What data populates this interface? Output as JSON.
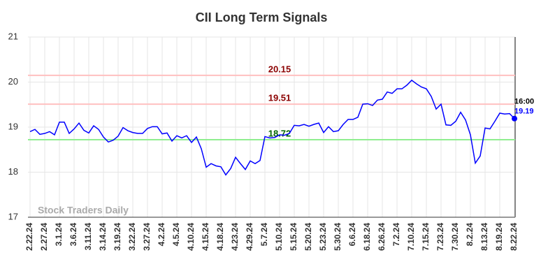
{
  "chart_data": {
    "type": "line",
    "title": "CII Long Term Signals",
    "watermark": "Stock Traders Daily",
    "categories": [
      "2.22.24",
      null,
      null,
      "2.27.24",
      null,
      null,
      "3.1.24",
      null,
      null,
      "3.6.24",
      null,
      null,
      "3.11.24",
      null,
      null,
      "3.14.24",
      null,
      null,
      "3.19.24",
      null,
      null,
      "3.22.24",
      null,
      null,
      "3.27.24",
      null,
      null,
      "4.2.24",
      null,
      null,
      "4.5.24",
      null,
      null,
      "4.10.24",
      null,
      null,
      "4.15.24",
      null,
      null,
      "4.18.24",
      null,
      null,
      "4.23.24",
      null,
      null,
      "4.29.24",
      null,
      null,
      "5.7.24",
      null,
      null,
      "5.10.24",
      null,
      null,
      "5.15.24",
      null,
      null,
      "5.20.24",
      null,
      null,
      "5.23.24",
      null,
      null,
      "5.30.24",
      null,
      null,
      "6.6.24",
      null,
      null,
      "6.18.24",
      null,
      null,
      "6.26.24",
      null,
      null,
      "7.2.24",
      null,
      null,
      "7.10.24",
      null,
      null,
      "7.15.24",
      null,
      null,
      "7.23.24",
      null,
      null,
      "7.30.24",
      null,
      null,
      "8.2.24",
      null,
      null,
      "8.13.24",
      null,
      null,
      "8.19.24",
      null,
      null,
      "8.22.24"
    ],
    "values": [
      18.9,
      18.95,
      18.84,
      18.86,
      18.9,
      18.83,
      19.11,
      19.11,
      18.86,
      18.96,
      19.09,
      18.93,
      18.87,
      19.03,
      18.95,
      18.78,
      18.67,
      18.71,
      18.8,
      18.99,
      18.92,
      18.88,
      18.86,
      18.86,
      18.97,
      19.01,
      19.01,
      18.85,
      18.87,
      18.69,
      18.81,
      18.76,
      18.81,
      18.66,
      18.78,
      18.52,
      18.11,
      18.19,
      18.14,
      18.12,
      17.94,
      18.08,
      18.33,
      18.19,
      18.06,
      18.25,
      18.19,
      18.26,
      18.79,
      18.76,
      18.77,
      18.83,
      18.82,
      18.86,
      19.04,
      19.03,
      19.06,
      19.02,
      19.06,
      19.09,
      18.88,
      19.01,
      18.9,
      18.92,
      19.06,
      19.17,
      19.17,
      19.22,
      19.51,
      19.52,
      19.48,
      19.6,
      19.62,
      19.78,
      19.75,
      19.85,
      19.85,
      19.93,
      20.04,
      19.96,
      19.89,
      19.85,
      19.68,
      19.4,
      19.51,
      19.05,
      19.04,
      19.13,
      19.33,
      19.16,
      18.83,
      18.2,
      18.36,
      18.98,
      18.96,
      19.13,
      19.31,
      19.29,
      19.3,
      19.19
    ],
    "color": "#0000ff",
    "hlines": [
      {
        "value": 20.15,
        "color": "#ffc0c0",
        "label_color": "#8b0000"
      },
      {
        "value": 19.51,
        "color": "#ffc0c0",
        "label_color": "#8b0000"
      },
      {
        "value": 18.72,
        "color": "#90ee90",
        "label_color": "#006400"
      }
    ],
    "last_time": "16:00",
    "ylim": [
      17,
      21
    ],
    "yticks": [
      17,
      18,
      19,
      20,
      21
    ],
    "grid": true
  }
}
